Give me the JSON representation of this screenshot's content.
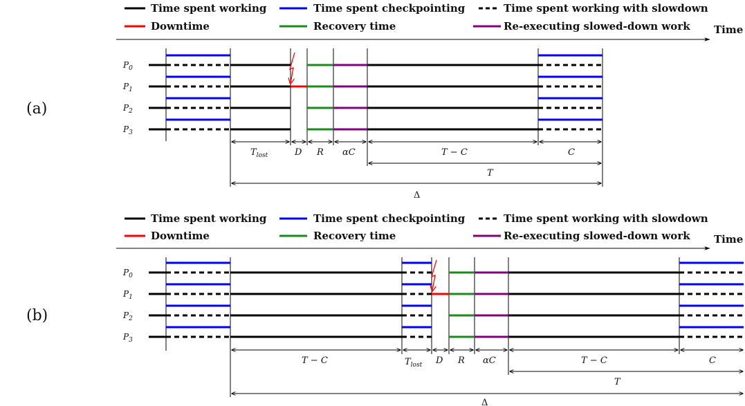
{
  "legend": {
    "working": "Time spent working",
    "checkpointing": "Time spent checkpointing",
    "slowdown": "Time spent working with slowdown",
    "downtime": "Downtime",
    "recovery": "Recovery time",
    "reexec": "Re-executing slowed-down work"
  },
  "axis_label": "Time",
  "panels": {
    "a": {
      "label": "(a)",
      "processors": [
        "P",
        "P",
        "P",
        "P"
      ],
      "processor_subscripts": [
        "0",
        "1",
        "2",
        "3"
      ],
      "dims": {
        "t_lost": "T",
        "t_lost_sub": "lost",
        "d": "D",
        "r": "R",
        "alpha_c": "αC",
        "t_minus_c": "T − C",
        "c": "C",
        "t": "T",
        "delta": "Δ"
      }
    },
    "b": {
      "label": "(b)",
      "processors": [
        "P",
        "P",
        "P",
        "P"
      ],
      "processor_subscripts": [
        "0",
        "1",
        "2",
        "3"
      ],
      "dims": {
        "t_minus_c_1": "T − C",
        "t_lost": "T",
        "t_lost_sub": "lost",
        "d": "D",
        "r": "R",
        "alpha_c": "αC",
        "t_minus_c_2": "T − C",
        "c": "C",
        "t": "T",
        "delta": "Δ"
      }
    }
  },
  "colors": {
    "working": "#000000",
    "checkpointing": "#0000ff",
    "downtime": "#ff0000",
    "recovery": "#1a8a1a",
    "reexec": "#800080",
    "failure": "#ff0000"
  }
}
